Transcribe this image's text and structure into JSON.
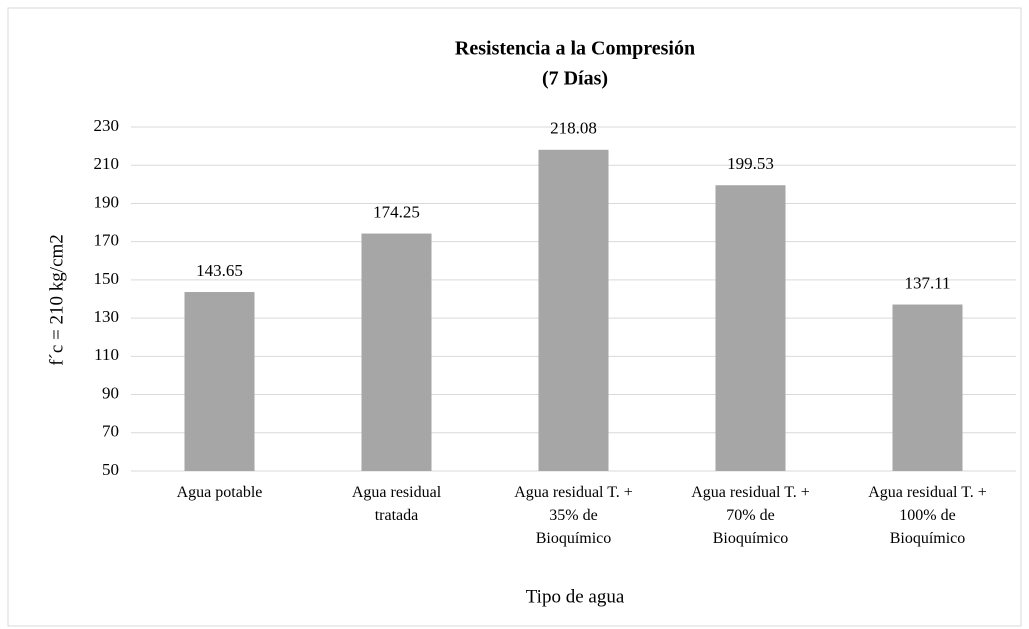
{
  "chart_data": {
    "type": "bar",
    "title": "Resistencia a la Compresión",
    "subtitle": "(7 Días)",
    "x_label": "Tipo de agua",
    "y_label": "f´c = 210 kg/cm2",
    "categories": [
      "Agua potable",
      "Agua residual\ntratada",
      "Agua residual T. +\n35% de\nBioquímico",
      "Agua residual T. +\n70% de\nBioquímico",
      "Agua residual T. +\n100% de\nBioquímico"
    ],
    "values": [
      143.65,
      174.25,
      218.08,
      199.53,
      137.11
    ],
    "color": "#a6a6a6",
    "ylim": [
      50,
      230
    ],
    "yticks": [
      50,
      70,
      90,
      110,
      130,
      150,
      170,
      190,
      210,
      230
    ],
    "grid": true
  }
}
